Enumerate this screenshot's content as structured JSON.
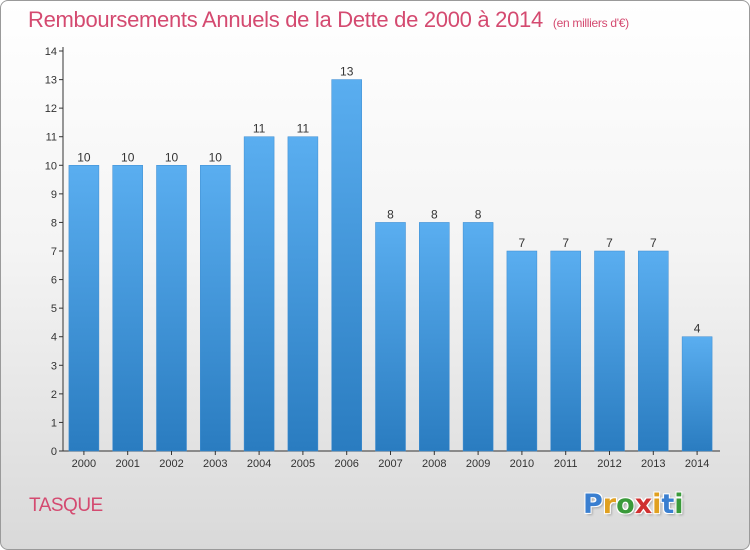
{
  "header": {
    "title": "Remboursements Annuels de la Dette de 2000 à 2014",
    "unit": "(en milliers d'€)"
  },
  "footer": {
    "place": "TASQUE",
    "logo_letters": [
      {
        "ch": "P",
        "color": "#3a7fd0"
      },
      {
        "ch": "r",
        "color": "#e0a020"
      },
      {
        "ch": "o",
        "color": "#3a9a3a"
      },
      {
        "ch": "x",
        "color": "#d03030"
      },
      {
        "ch": "i",
        "color": "#e0a020"
      },
      {
        "ch": "t",
        "color": "#3a7fd0"
      },
      {
        "ch": "i",
        "color": "#3a9a3a"
      }
    ]
  },
  "chart_data": {
    "type": "bar",
    "title": "Remboursements Annuels de la Dette de 2000 à 2014",
    "categories": [
      "2000",
      "2001",
      "2002",
      "2003",
      "2004",
      "2005",
      "2006",
      "2007",
      "2008",
      "2009",
      "2010",
      "2011",
      "2012",
      "2013",
      "2014"
    ],
    "values": [
      10,
      10,
      10,
      10,
      11,
      11,
      13,
      8,
      8,
      8,
      7,
      7,
      7,
      7,
      4
    ],
    "ylim": [
      0,
      14
    ],
    "yticks": [
      0,
      1,
      2,
      3,
      4,
      5,
      6,
      7,
      8,
      9,
      10,
      11,
      12,
      13,
      14
    ],
    "grid": false,
    "bar_color_top": "#5aaef0",
    "bar_color_bottom": "#2a7cc0"
  }
}
